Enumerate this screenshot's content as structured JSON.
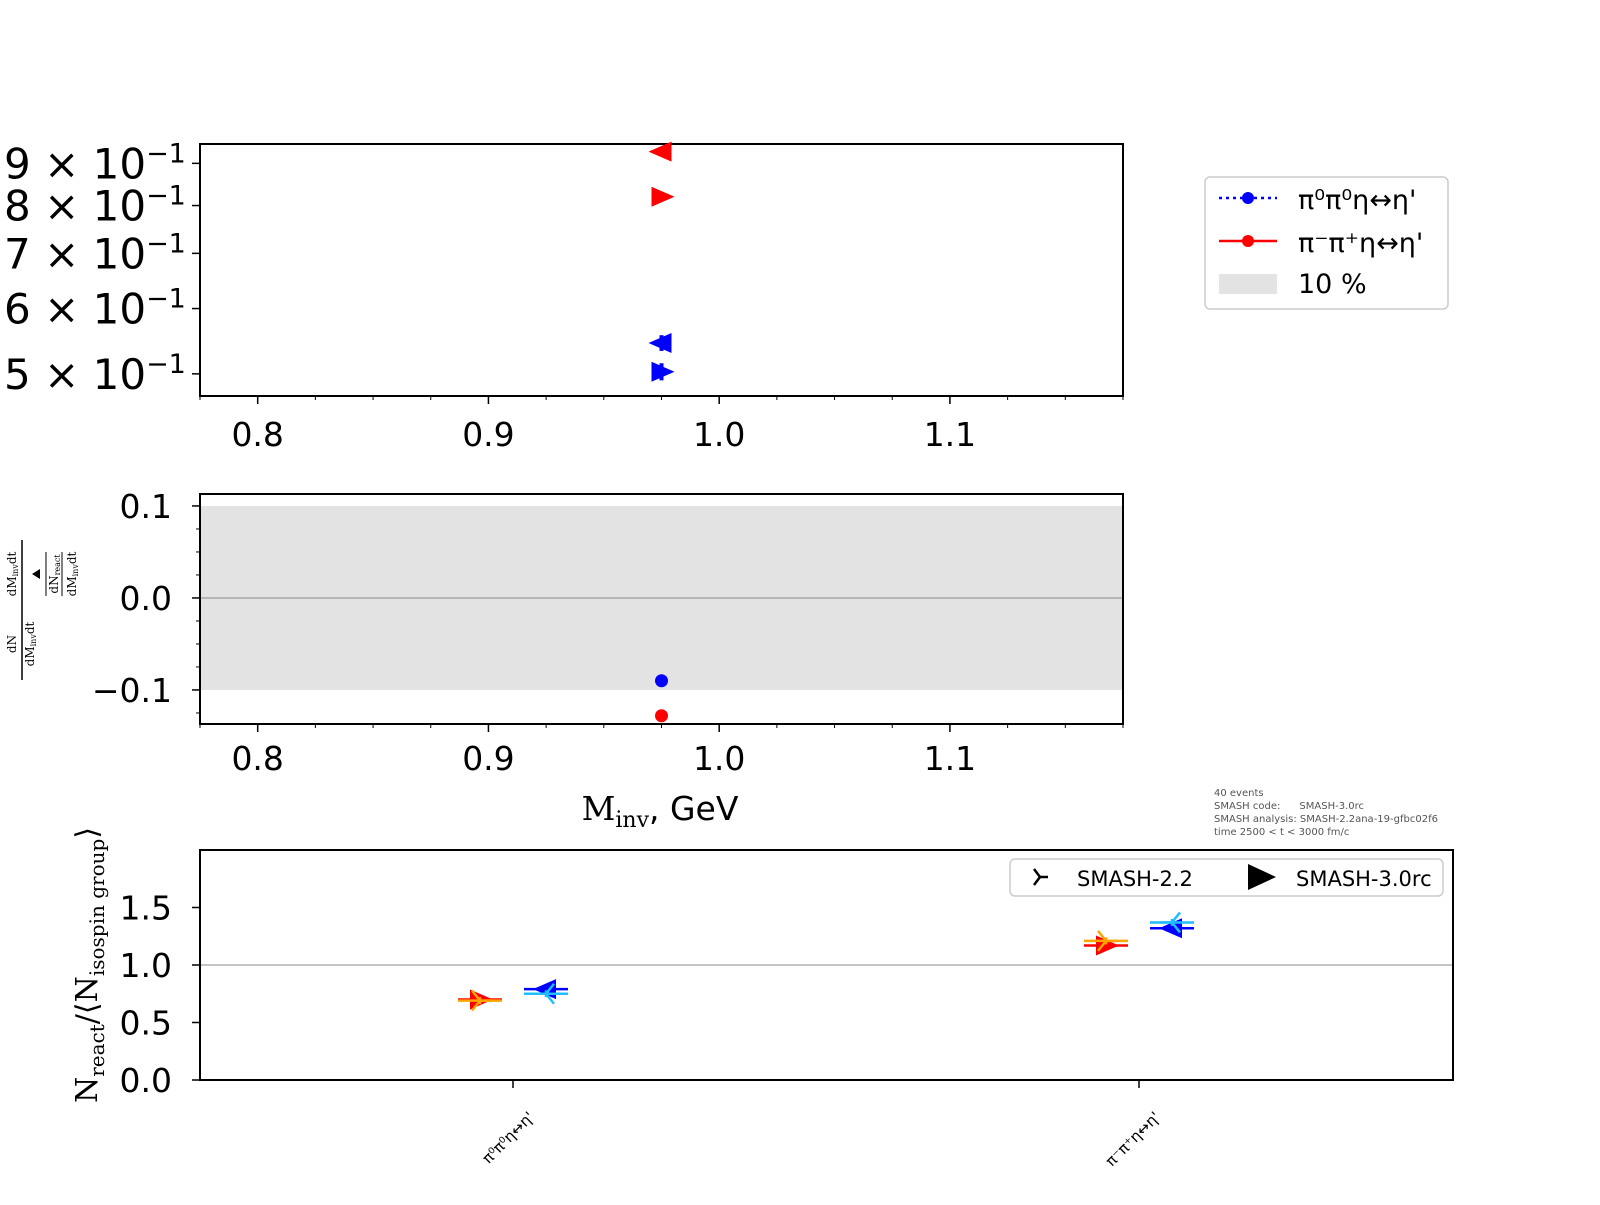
{
  "colors": {
    "series_a": "#0000ff",
    "series_b": "#ff0000",
    "band": "#e3e3e3",
    "light_blue": "#1ebeff",
    "orange": "#ffa500"
  },
  "legend_top": {
    "items": [
      {
        "label": "π⁰π⁰η↔η'",
        "line": "dotted",
        "color": "#0000ff"
      },
      {
        "label": "π⁻π⁺η↔η'",
        "line": "solid",
        "color": "#ff0000"
      },
      {
        "label": "10 %",
        "patch": true,
        "color": "#e3e3e3"
      }
    ]
  },
  "legend_bottom": {
    "items": [
      {
        "label": "SMASH-2.2",
        "marker": "tri_right"
      },
      {
        "label": "SMASH-3.0rc",
        "marker": "triangle_right"
      }
    ]
  },
  "meta": {
    "events": "40 events",
    "code": "SMASH code:      SMASH-3.0rc",
    "analysis": "SMASH analysis: SMASH-2.2ana-19-gfbc02f6",
    "time": "time 2500 < t < 3000 fm/c"
  },
  "chart_data": [
    {
      "type": "scatter",
      "panel": "top",
      "yscale": "log",
      "xlim": [
        0.775,
        1.175
      ],
      "ylim": [
        0.47,
        0.95
      ],
      "xticks": [
        "0.8",
        "0.9",
        "1.0",
        "1.1"
      ],
      "yticks": [
        {
          "value": 0.9,
          "mantissa": "9",
          "exp": "−1"
        },
        {
          "value": 0.8,
          "mantissa": "8",
          "exp": "−1"
        },
        {
          "value": 0.7,
          "mantissa": "7",
          "exp": "−1"
        },
        {
          "value": 0.6,
          "mantissa": "6",
          "exp": "−1"
        },
        {
          "value": 0.5,
          "mantissa": "5",
          "exp": "−1"
        }
      ],
      "series": [
        {
          "color": "#ff0000",
          "points": [
            {
              "x": 0.975,
              "y": 0.93,
              "marker": "triangle_left",
              "err": 0.01
            },
            {
              "x": 0.975,
              "y": 0.82,
              "marker": "triangle_right",
              "err": 0.01
            }
          ]
        },
        {
          "color": "#0000ff",
          "points": [
            {
              "x": 0.975,
              "y": 0.545,
              "marker": "triangle_left",
              "err": 0.012
            },
            {
              "x": 0.975,
              "y": 0.503,
              "marker": "triangle_right",
              "err": 0.012
            }
          ]
        }
      ]
    },
    {
      "type": "scatter",
      "panel": "ratio",
      "xlim": [
        0.775,
        1.175
      ],
      "ylim": [
        -0.137,
        0.113
      ],
      "band": [
        -0.1,
        0.1
      ],
      "xticks": [
        "0.8",
        "0.9",
        "1.0",
        "1.1"
      ],
      "yticks": [
        "0.1",
        "0.0",
        "−0.1"
      ],
      "ytick_values": [
        0.1,
        0.0,
        -0.1
      ],
      "xlabel_main": "M",
      "xlabel_sub": "inv",
      "xlabel_rest": ", GeV",
      "ylabel": {
        "left_num": "dN",
        "left_num_sub": "react",
        "left_den": "dM",
        "left_den_sub": "inv",
        "left_den_tail": "dt",
        "right_top": "dM",
        "right_top_sub": "inv",
        "right_top_tail": "dt",
        "right_mid": "dN",
        "right_mid_sub": "react",
        "right_bot": "dM",
        "right_bot_sub": "inv",
        "right_bot_tail": "dt"
      },
      "points": [
        {
          "x": 0.975,
          "y": -0.09,
          "color": "#0000ff"
        },
        {
          "x": 0.975,
          "y": -0.128,
          "color": "#ff0000"
        }
      ]
    },
    {
      "type": "scatter",
      "panel": "bottom",
      "ylim": [
        0.0,
        2.0
      ],
      "yticks": [
        "1.5",
        "1.0",
        "0.5",
        "0.0"
      ],
      "ytick_values": [
        1.5,
        1.0,
        0.5,
        0.0
      ],
      "categories": [
        "π⁰π⁰η↔η'",
        "π⁻π⁺η↔η'"
      ],
      "ylabel_main": "N",
      "ylabel_sub": "react",
      "ylabel_mid": "/⟨N",
      "ylabel_sub2": "isospin group",
      "ylabel_end": "⟩",
      "points": [
        {
          "cat": 0,
          "offset": -0.5,
          "y": 0.7,
          "marker": "triangle_right",
          "color": "#ff0000",
          "err": 0.03
        },
        {
          "cat": 0,
          "offset": -0.5,
          "y": 0.69,
          "marker": "tri_right",
          "color": "#ffa500",
          "err": 0.03
        },
        {
          "cat": 0,
          "offset": 0.5,
          "y": 0.79,
          "marker": "triangle_left",
          "color": "#0000ff",
          "err": 0.03
        },
        {
          "cat": 0,
          "offset": 0.5,
          "y": 0.75,
          "marker": "tri_left",
          "color": "#1ebeff",
          "err": 0.03
        },
        {
          "cat": 1,
          "offset": -0.5,
          "y": 1.17,
          "marker": "triangle_right",
          "color": "#ff0000",
          "err": 0.03
        },
        {
          "cat": 1,
          "offset": -0.5,
          "y": 1.21,
          "marker": "tri_right",
          "color": "#ffa500",
          "err": 0.03
        },
        {
          "cat": 1,
          "offset": 0.5,
          "y": 1.32,
          "marker": "triangle_left",
          "color": "#0000ff",
          "err": 0.03
        },
        {
          "cat": 1,
          "offset": 0.5,
          "y": 1.37,
          "marker": "tri_left",
          "color": "#1ebeff",
          "err": 0.03
        }
      ]
    }
  ]
}
